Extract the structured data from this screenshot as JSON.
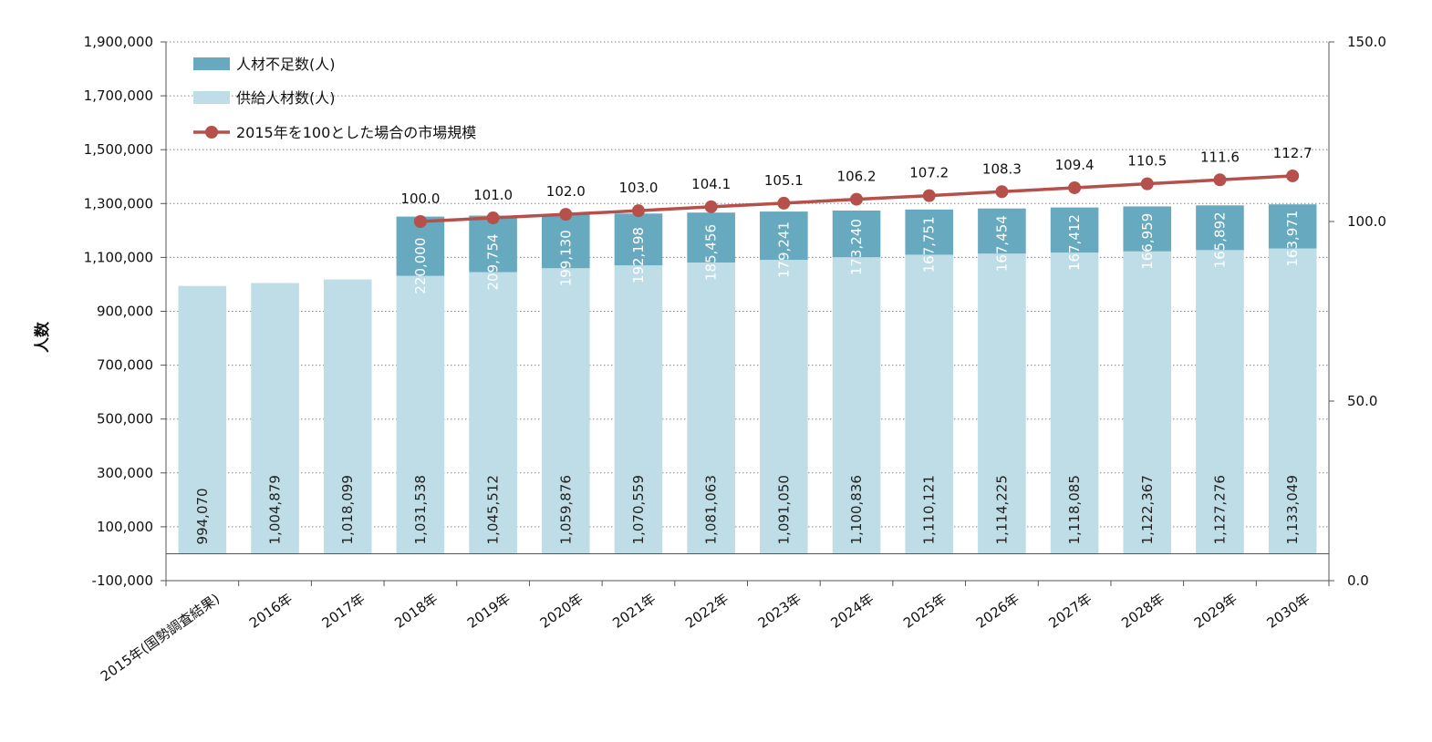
{
  "chart_data": {
    "type": "bar",
    "stacked": true,
    "categories": [
      "2015年(国勢調査結果)",
      "2016年",
      "2017年",
      "2018年",
      "2019年",
      "2020年",
      "2021年",
      "2022年",
      "2023年",
      "2024年",
      "2025年",
      "2026年",
      "2027年",
      "2028年",
      "2029年",
      "2030年"
    ],
    "series": [
      {
        "name": "供給人材数(人)",
        "color": "#bedde6",
        "values": [
          994070,
          1004879,
          1018099,
          1031538,
          1045512,
          1059876,
          1070559,
          1081063,
          1091050,
          1100836,
          1110121,
          1114225,
          1118085,
          1122367,
          1127276,
          1133049
        ],
        "labels": [
          "994,070",
          "1,004,879",
          "1,018,099",
          "1,031,538",
          "1,045,512",
          "1,059,876",
          "1,070,559",
          "1,081,063",
          "1,091,050",
          "1,100,836",
          "1,110,121",
          "1,114,225",
          "1,118,085",
          "1,122,367",
          "1,127,276",
          "1,133,049"
        ]
      },
      {
        "name": "人材不足数(人)",
        "color": "#67a9bf",
        "values": [
          null,
          null,
          null,
          220000,
          209754,
          199130,
          192198,
          185456,
          179241,
          173240,
          167751,
          167454,
          167412,
          166959,
          165892,
          163971
        ],
        "labels": [
          "",
          "",
          "",
          "220,000",
          "209,754",
          "199,130",
          "192,198",
          "185,456",
          "179,241",
          "173,240",
          "167,751",
          "167,454",
          "167,412",
          "166,959",
          "165,892",
          "163,971"
        ]
      }
    ],
    "line": {
      "name": "2015年を100とした場合の市場規模",
      "color": "#b5504b",
      "axis": "right",
      "values": [
        null,
        null,
        null,
        100.0,
        101.0,
        102.0,
        103.0,
        104.1,
        105.1,
        106.2,
        107.2,
        108.3,
        109.4,
        110.5,
        111.6,
        112.7
      ],
      "labels": [
        "",
        "",
        "",
        "100.0",
        "101.0",
        "102.0",
        "103.0",
        "104.1",
        "105.1",
        "106.2",
        "107.2",
        "108.3",
        "109.4",
        "110.5",
        "111.6",
        "112.7"
      ]
    },
    "ylabel": "人数",
    "ylim": [
      -100000,
      1900000
    ],
    "yticks": [
      -100000,
      100000,
      300000,
      500000,
      700000,
      900000,
      1100000,
      1300000,
      1500000,
      1700000,
      1900000
    ],
    "ytick_labels": [
      "-100,000",
      "100,000",
      "300,000",
      "500,000",
      "700,000",
      "900,000",
      "1,100,000",
      "1,300,000",
      "1,500,000",
      "1,700,000",
      "1,900,000"
    ],
    "y2lim": [
      0,
      150
    ],
    "y2ticks": [
      0,
      50,
      100,
      150
    ],
    "y2tick_labels": [
      "0.0",
      "50.0",
      "100.0",
      "150.0"
    ],
    "legend": [
      {
        "label": "人材不足数(人)",
        "kind": "bar",
        "color": "#67a9bf"
      },
      {
        "label": "供給人材数(人)",
        "kind": "bar",
        "color": "#bedde6"
      },
      {
        "label": "2015年を100とした場合の市場規模",
        "kind": "line",
        "color": "#b5504b"
      }
    ],
    "legend_position": "top-left",
    "grid": true
  }
}
